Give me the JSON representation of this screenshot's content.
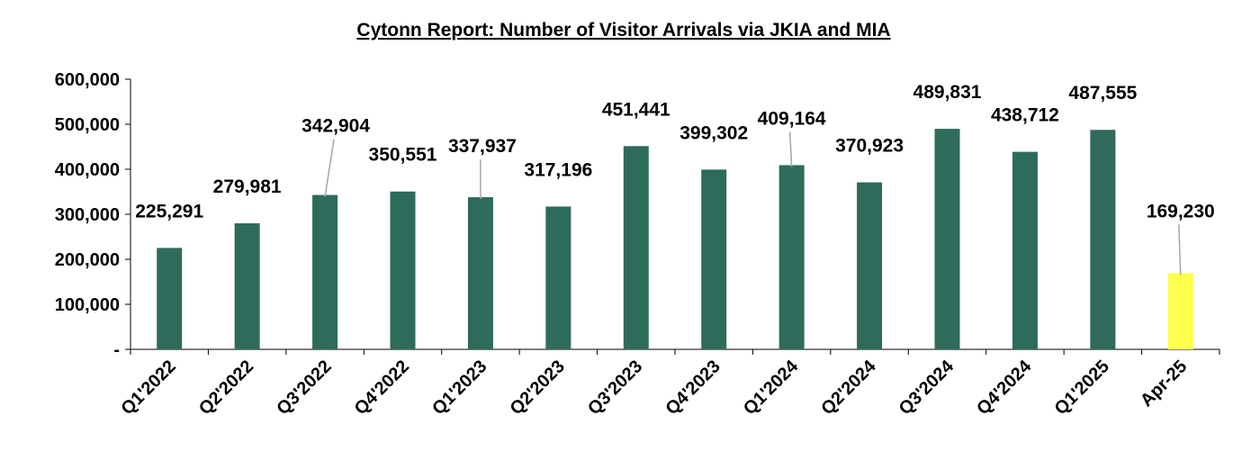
{
  "chart_data": {
    "type": "bar",
    "title": "Cytonn Report: Number of Visitor Arrivals via JKIA and MIA",
    "xlabel": "",
    "ylabel": "",
    "categories": [
      "Q1'2022",
      "Q2'2022",
      "Q3'2022",
      "Q4'2022",
      "Q1'2023",
      "Q2'2023",
      "Q3'2023",
      "Q4'2023",
      "Q1'2024",
      "Q2'2024",
      "Q3'2024",
      "Q4'2024",
      "Q1'2025",
      "Apr-25"
    ],
    "values": [
      225291,
      279981,
      342904,
      350551,
      337937,
      317196,
      451441,
      399302,
      409164,
      370923,
      489831,
      438712,
      487555,
      169230
    ],
    "data_labels": [
      "225,291",
      "279,981",
      "342,904",
      "350,551",
      "337,937",
      "317,196",
      "451,441",
      "399,302",
      "409,164",
      "370,923",
      "489,831",
      "438,712",
      "487,555",
      "169,230"
    ],
    "ylim": [
      0,
      600000
    ],
    "yticks": [
      0,
      100000,
      200000,
      300000,
      400000,
      500000,
      600000
    ],
    "ytick_labels": [
      "-",
      "100,000",
      "200,000",
      "300,000",
      "400,000",
      "500,000",
      "600,000"
    ],
    "grid": false,
    "legend": "none",
    "colors": {
      "bar": "#2e6b5b",
      "highlight_bar": "#ffff4d",
      "highlight_categories": [
        "Apr-25"
      ],
      "axis": "#000000",
      "leader_line": "#a6a6a6"
    }
  }
}
